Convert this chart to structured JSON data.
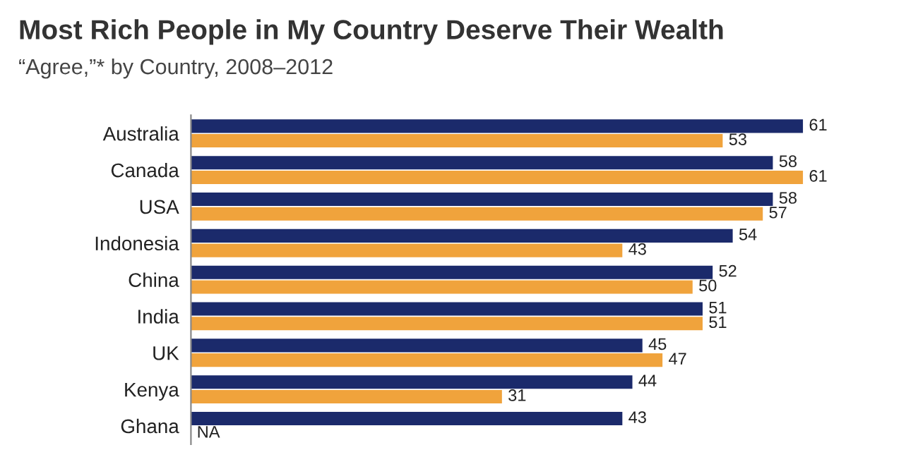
{
  "chart_data": {
    "type": "bar",
    "orientation": "horizontal",
    "title": "Most Rich People in My Country Deserve Their Wealth",
    "subtitle": "“Agree,”* by Country, 2008–2012",
    "categories": [
      "Australia",
      "Canada",
      "USA",
      "Indonesia",
      "China",
      "India",
      "UK",
      "Kenya",
      "Ghana"
    ],
    "series": [
      {
        "color": "#1b2a6b",
        "values": [
          61,
          58,
          58,
          54,
          52,
          51,
          45,
          44,
          43
        ],
        "value_labels": [
          "61",
          "58",
          "58",
          "54",
          "52",
          "51",
          "45",
          "44",
          "43"
        ]
      },
      {
        "color": "#f0a33c",
        "values": [
          53,
          61,
          57,
          43,
          50,
          51,
          47,
          31,
          null
        ],
        "value_labels": [
          "53",
          "61",
          "57",
          "43",
          "50",
          "51",
          "47",
          "31",
          "NA"
        ]
      }
    ]
  }
}
